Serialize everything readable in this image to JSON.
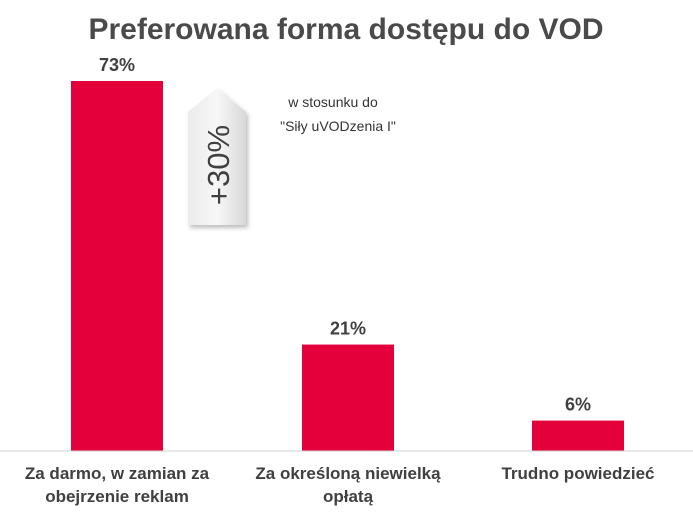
{
  "chart_data": {
    "type": "bar",
    "title": "Preferowana forma dostępu do VOD",
    "categories": [
      [
        "Za darmo, w zamian za",
        "obejrzenie reklam"
      ],
      [
        "Za określoną niewielką",
        "opłatą"
      ],
      [
        "Trudno powiedzieć"
      ]
    ],
    "values": [
      73,
      21,
      6
    ],
    "value_labels": [
      "73%",
      "21%",
      "6%"
    ],
    "unit": "%",
    "ylim": [
      0,
      73
    ],
    "grid": false,
    "bar_color": "#e4003a",
    "annotation": {
      "badge": "+30%",
      "note_lines": [
        "w stosunku do",
        "\"Siły uVODzenia I\""
      ]
    }
  }
}
